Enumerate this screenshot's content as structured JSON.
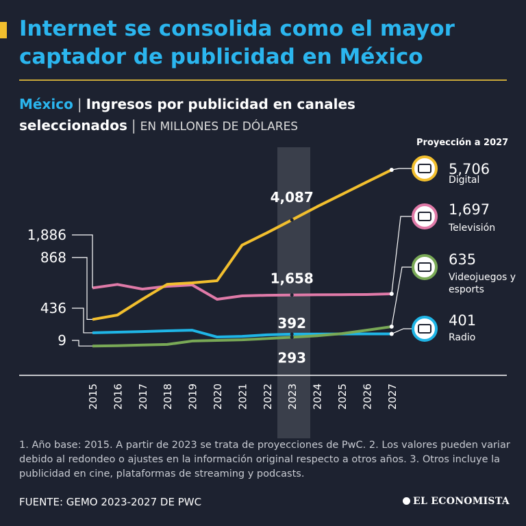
{
  "chart_data": {
    "type": "line",
    "title": "Internet se consolida como el mayor captador de publicidad en México",
    "subtitle_country": "México",
    "separator": "|",
    "subtitle": "Ingresos por publicidad en canales seleccionados",
    "units": "EN MILLONES DE DÓLARES",
    "projection_label": "Proyección a 2027",
    "categories": [
      "2015",
      "2016",
      "2017",
      "2018",
      "2019",
      "2020",
      "2021",
      "2022",
      "2023",
      "2024",
      "2025",
      "2026",
      "2027"
    ],
    "ylim": [
      0,
      6000
    ],
    "series": [
      {
        "name": "Digital",
        "color": "#f2bf2e",
        "values": [
          868,
          1010,
          1520,
          2005,
          2050,
          2120,
          3270,
          3670,
          4087,
          4510,
          4910,
          5310,
          5706
        ],
        "value_labels": [
          "868",
          null,
          null,
          null,
          null,
          null,
          null,
          null,
          "4,087",
          null,
          null,
          null,
          "5,706"
        ]
      },
      {
        "name": "Televisión",
        "color": "#e07aa8",
        "values": [
          1886,
          2000,
          1850,
          1940,
          1985,
          1520,
          1630,
          1650,
          1658,
          1665,
          1670,
          1675,
          1697
        ],
        "value_labels": [
          "1,886",
          null,
          null,
          null,
          null,
          null,
          null,
          null,
          "1,658",
          null,
          null,
          null,
          "1,697"
        ]
      },
      {
        "name": "Videojuegos y esports",
        "color": "#79a956",
        "values": [
          9,
          20,
          40,
          60,
          170,
          190,
          210,
          250,
          293,
          340,
          410,
          520,
          635
        ],
        "value_labels": [
          "9",
          null,
          null,
          null,
          null,
          null,
          null,
          null,
          "293",
          null,
          null,
          null,
          "635"
        ]
      },
      {
        "name": "Radio",
        "color": "#1fb5e6",
        "values": [
          436,
          455,
          475,
          500,
          520,
          300,
          320,
          370,
          392,
          395,
          398,
          400,
          401
        ],
        "value_labels": [
          "436",
          null,
          null,
          null,
          null,
          null,
          null,
          null,
          "392",
          null,
          null,
          null,
          "401"
        ]
      }
    ],
    "note": "1. Año base: 2015. A partir de 2023 se trata de proyecciones de PwC. 2. Los valores pueden variar debido al redondeo o ajustes en la información original respecto a otros años. 3. Otros incluye la publicidad en cine, plataformas de streaming y podcasts.",
    "source": "FUENTE: GEMO 2023-2027 DE PWC",
    "logo": "EL ECONOMISTA"
  }
}
